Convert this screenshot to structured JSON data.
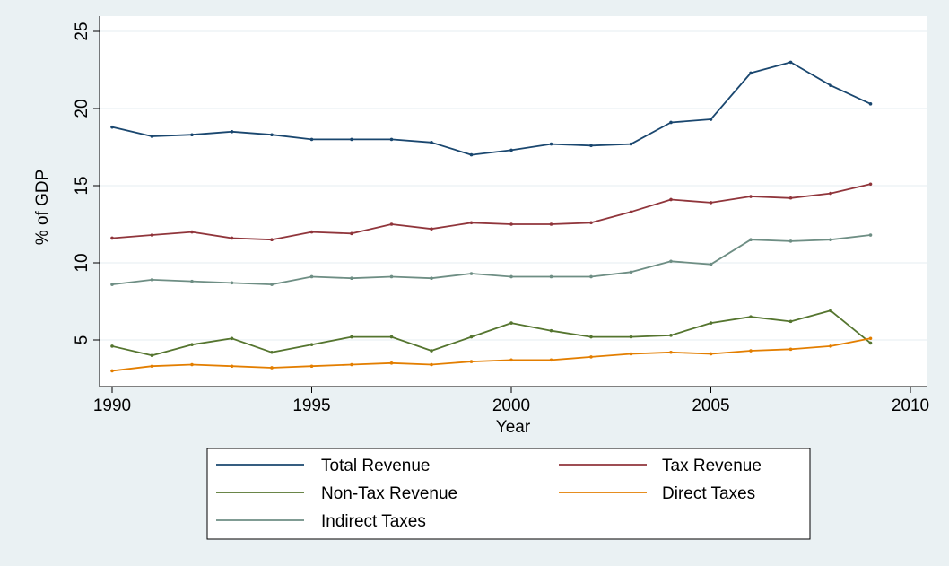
{
  "chart_data": {
    "type": "line",
    "title": "",
    "xlabel": "Year",
    "ylabel": "% of GDP",
    "xlim": [
      1990,
      2010
    ],
    "ylim": [
      3,
      25
    ],
    "x_ticks": [
      1990,
      1995,
      2000,
      2005,
      2010
    ],
    "y_ticks": [
      5,
      10,
      15,
      20,
      25
    ],
    "grid": true,
    "legend_position": "bottom",
    "x": [
      1990,
      1991,
      1992,
      1993,
      1994,
      1995,
      1996,
      1997,
      1998,
      1999,
      2000,
      2001,
      2002,
      2003,
      2004,
      2005,
      2006,
      2007,
      2008,
      2009
    ],
    "series": [
      {
        "name": "Total Revenue",
        "color": "#1a476f",
        "values": [
          18.8,
          18.2,
          18.3,
          18.5,
          18.3,
          18.0,
          18.0,
          18.0,
          17.8,
          17.0,
          17.3,
          17.7,
          17.6,
          17.7,
          19.1,
          19.3,
          22.3,
          23.0,
          21.5,
          20.3
        ]
      },
      {
        "name": "Tax Revenue",
        "color": "#90353b",
        "values": [
          11.6,
          11.8,
          12.0,
          11.6,
          11.5,
          12.0,
          11.9,
          12.5,
          12.2,
          12.6,
          12.5,
          12.5,
          12.6,
          13.3,
          14.1,
          13.9,
          14.3,
          14.2,
          14.5,
          15.1
        ]
      },
      {
        "name": "Non-Tax Revenue",
        "color": "#55752f",
        "values": [
          4.6,
          4.0,
          4.7,
          5.1,
          4.2,
          4.7,
          5.2,
          5.2,
          4.3,
          5.2,
          6.1,
          5.6,
          5.2,
          5.2,
          5.3,
          6.1,
          6.5,
          6.2,
          6.9,
          4.8
        ]
      },
      {
        "name": "Direct Taxes",
        "color": "#e37e00",
        "values": [
          3.0,
          3.3,
          3.4,
          3.3,
          3.2,
          3.3,
          3.4,
          3.5,
          3.4,
          3.6,
          3.7,
          3.7,
          3.9,
          4.1,
          4.2,
          4.1,
          4.3,
          4.4,
          4.6,
          5.1
        ]
      },
      {
        "name": "Indirect Taxes",
        "color": "#6e8e84",
        "values": [
          8.6,
          8.9,
          8.8,
          8.7,
          8.6,
          9.1,
          9.0,
          9.1,
          9.0,
          9.3,
          9.1,
          9.1,
          9.1,
          9.4,
          10.1,
          9.9,
          11.5,
          11.4,
          11.5,
          11.8
        ]
      }
    ]
  }
}
